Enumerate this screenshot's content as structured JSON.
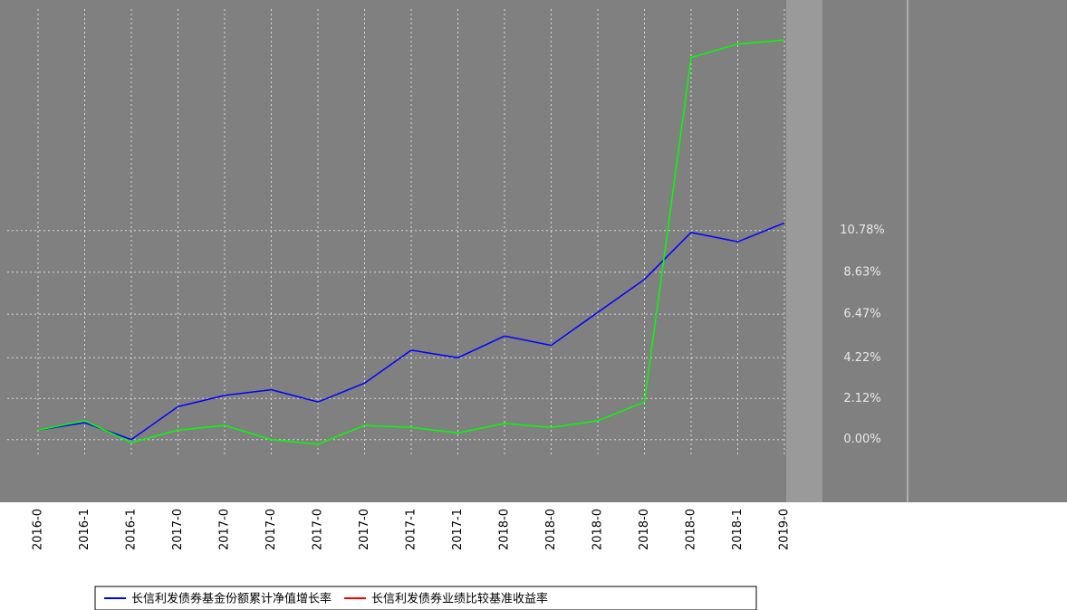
{
  "chart_data": {
    "type": "line",
    "categories": [
      "2016-0",
      "2016-1",
      "2016-1",
      "2017-0",
      "2017-0",
      "2017-0",
      "2017-0",
      "2017-0",
      "2017-1",
      "2017-1",
      "2018-0",
      "2018-0",
      "2018-0",
      "2018-0",
      "2018-0",
      "2018-1",
      "2019-0"
    ],
    "series": [
      {
        "name": "长信利发债券基金份额累计净值增长率",
        "color": "#0000ff",
        "values": [
          0.49,
          0.87,
          0,
          1.7,
          2.28,
          2.57,
          1.94,
          2.91,
          4.61,
          4.22,
          5.34,
          4.86,
          6.56,
          8.26,
          10.68,
          10.2,
          11.17
        ]
      },
      {
        "name": "长信利发债券业绩比较基准收益率",
        "color": "#00ff00",
        "legend_color": "#ff0000",
        "values": [
          0.49,
          0.97,
          -0.15,
          0.49,
          0.73,
          0,
          -0.24,
          0.73,
          0.63,
          0.34,
          0.83,
          0.63,
          0.97,
          1.94,
          19.7,
          20.4,
          20.6
        ]
      }
    ],
    "ylim": [
      -0.9,
      22.2
    ],
    "yticks": [
      {
        "value": 0,
        "label": "0.00%"
      },
      {
        "value": 2.12,
        "label": "2.12%"
      },
      {
        "value": 4.22,
        "label": "4.22%"
      },
      {
        "value": 6.47,
        "label": "6.47%"
      },
      {
        "value": 8.63,
        "label": "8.63%"
      },
      {
        "value": 10.78,
        "label": "10.78%"
      }
    ],
    "grid": true
  }
}
